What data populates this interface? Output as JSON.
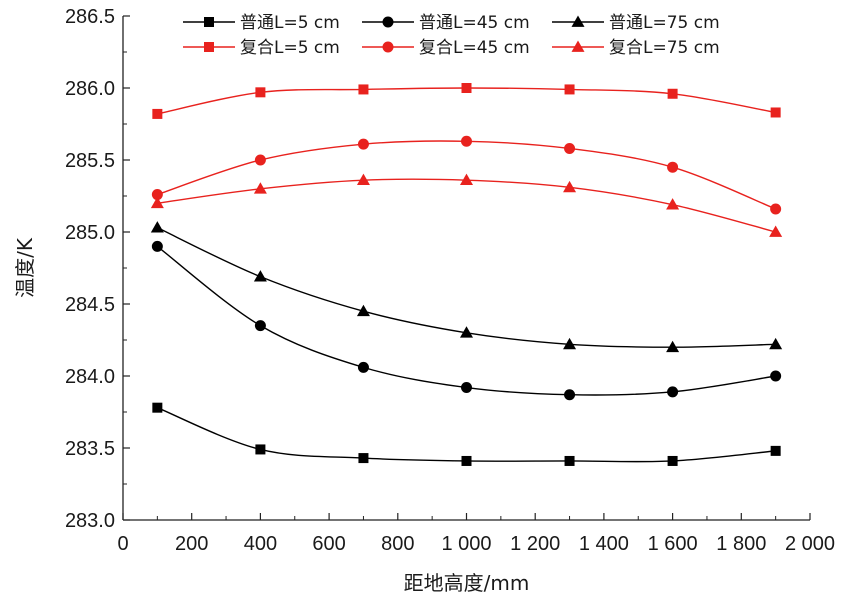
{
  "chart_data": {
    "type": "line",
    "xlabel": "距地高度/mm",
    "ylabel": "温度/K",
    "xlim": [
      0,
      2000
    ],
    "ylim": [
      283.0,
      286.5
    ],
    "xticks": [
      0,
      200,
      400,
      600,
      800,
      1000,
      1200,
      1400,
      1600,
      1800,
      2000
    ],
    "xtick_labels": [
      "0",
      "200",
      "400",
      "600",
      "800",
      "1 000",
      "1 200",
      "1 400",
      "1 600",
      "1 800",
      "2 000"
    ],
    "yticks": [
      283.0,
      283.5,
      284.0,
      284.5,
      285.0,
      285.5,
      286.0,
      286.5
    ],
    "ytick_labels": [
      "283.0",
      "283.5",
      "284.0",
      "284.5",
      "285.0",
      "285.5",
      "286.0",
      "286.5"
    ],
    "grid": false,
    "legend_position": "top",
    "x": [
      100,
      400,
      700,
      1000,
      1300,
      1600,
      1900
    ],
    "series": [
      {
        "name": "普通L=5 cm",
        "color": "#000000",
        "marker": "square",
        "values": [
          283.78,
          283.49,
          283.43,
          283.41,
          283.41,
          283.41,
          283.48
        ]
      },
      {
        "name": "普通L=45 cm",
        "color": "#000000",
        "marker": "circle",
        "values": [
          284.9,
          284.35,
          284.06,
          283.92,
          283.87,
          283.89,
          284.0
        ]
      },
      {
        "name": "普通L=75 cm",
        "color": "#000000",
        "marker": "triangle",
        "values": [
          285.03,
          284.69,
          284.45,
          284.3,
          284.22,
          284.2,
          284.22
        ]
      },
      {
        "name": "复合L=5 cm",
        "color": "#e8221e",
        "marker": "square",
        "values": [
          285.82,
          285.97,
          285.99,
          286.0,
          285.99,
          285.96,
          285.83
        ]
      },
      {
        "name": "复合L=45 cm",
        "color": "#e8221e",
        "marker": "circle",
        "values": [
          285.26,
          285.5,
          285.61,
          285.63,
          285.58,
          285.45,
          285.16
        ]
      },
      {
        "name": "复合L=75 cm",
        "color": "#e8221e",
        "marker": "triangle",
        "values": [
          285.2,
          285.3,
          285.36,
          285.36,
          285.31,
          285.19,
          285.0
        ]
      }
    ]
  }
}
